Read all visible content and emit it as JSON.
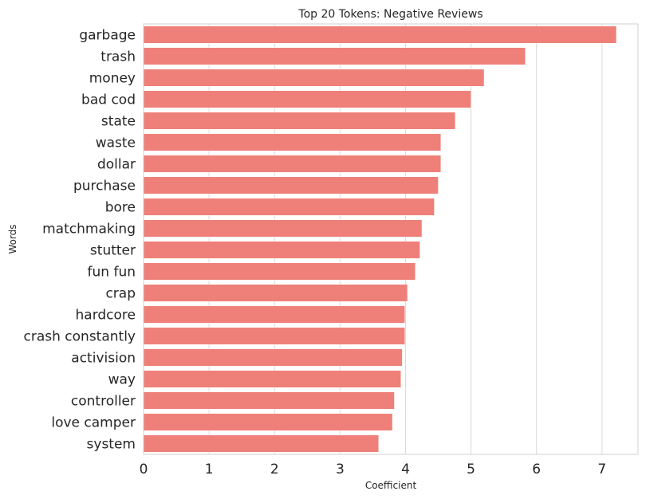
{
  "chart_data": {
    "type": "bar",
    "orientation": "horizontal",
    "title": "Top 20 Tokens: Negative Reviews",
    "xlabel": "Coefficient",
    "ylabel": "Words",
    "xlim": [
      0,
      7.55
    ],
    "xticks": [
      0,
      1,
      2,
      3,
      4,
      5,
      6,
      7
    ],
    "grid": "vertical",
    "bar_color": "#ee8079",
    "categories": [
      "garbage",
      "trash",
      "money",
      "bad cod",
      "state",
      "waste",
      "dollar",
      "purchase",
      "bore",
      "matchmaking",
      "stutter",
      "fun fun",
      "crap",
      "hardcore",
      "crash constantly",
      "activision",
      "way",
      "controller",
      "love camper",
      "system"
    ],
    "values": [
      7.22,
      5.83,
      5.2,
      5.0,
      4.76,
      4.54,
      4.54,
      4.5,
      4.44,
      4.25,
      4.22,
      4.15,
      4.03,
      3.99,
      3.99,
      3.95,
      3.93,
      3.83,
      3.8,
      3.59
    ]
  }
}
